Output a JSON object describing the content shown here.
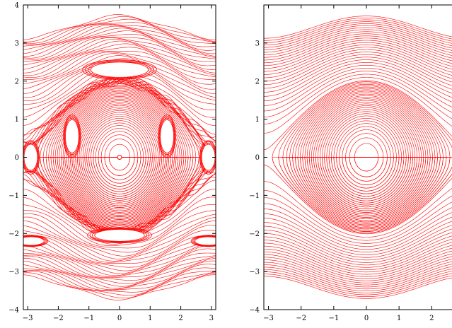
{
  "figure": {
    "background": "#ffffff",
    "curve_color": "#ff0000"
  },
  "chart_data": [
    {
      "type": "line",
      "panel": "left",
      "title": "",
      "xlabel": "",
      "ylabel": "",
      "xlim": [
        -3.14159,
        3.14159
      ],
      "ylim": [
        -4,
        4
      ],
      "x_ticks": [
        "−3",
        "−2",
        "−1",
        "0",
        "1",
        "2",
        "3"
      ],
      "x_tick_values": [
        -3,
        -2,
        -1,
        0,
        1,
        2,
        3
      ],
      "y_ticks": [
        "−4",
        "−3",
        "−2",
        "−1",
        "0",
        "1",
        "2",
        "3",
        "4"
      ],
      "y_tick_values": [
        -4,
        -3,
        -2,
        -1,
        0,
        1,
        2,
        3,
        4
      ],
      "grid": false,
      "legend": "none",
      "description_of_marks": "perturbed phase portrait (Poincaré section) with chaotic layers and island chains",
      "series": [
        {
          "kind": "separatrix-band",
          "amplitude": 0.65,
          "center": 3.0
        },
        {
          "kind": "island",
          "x": 0,
          "y": 2.3,
          "width": 1.5,
          "height": 0.32
        },
        {
          "kind": "island",
          "x": 0,
          "y": -2.05,
          "width": 1.3,
          "height": 0.25
        },
        {
          "kind": "island",
          "x": -2.9,
          "y": 0.0,
          "width": 0.35,
          "height": 0.55
        },
        {
          "kind": "island",
          "x": 2.9,
          "y": 0.0,
          "width": 0.35,
          "height": 0.55
        },
        {
          "kind": "island",
          "x": -2.9,
          "y": -2.2,
          "width": 0.7,
          "height": 0.18
        },
        {
          "kind": "island",
          "x": 2.9,
          "y": -2.2,
          "width": 0.7,
          "height": 0.18
        },
        {
          "kind": "island",
          "x": -1.55,
          "y": 0.55,
          "width": 0.35,
          "height": 0.7
        },
        {
          "kind": "island",
          "x": 1.55,
          "y": 0.55,
          "width": 0.35,
          "height": 0.7
        }
      ]
    },
    {
      "type": "line",
      "panel": "right",
      "title": "",
      "xlabel": "",
      "ylabel": "",
      "xlim": [
        -3.14159,
        3.14159
      ],
      "ylim": [
        -4,
        4
      ],
      "x_ticks": [
        "−3",
        "−2",
        "−1",
        "0",
        "1",
        "2"
      ],
      "x_tick_values": [
        -3,
        -2,
        -1,
        0,
        1,
        2
      ],
      "y_ticks": [
        "−4",
        "−3",
        "−2",
        "−1",
        "0",
        "1",
        "2",
        "3"
      ],
      "y_tick_values": [
        -4,
        -3,
        -2,
        -1,
        0,
        1,
        2,
        3
      ],
      "grid": false,
      "legend": "none",
      "description_of_marks": "unperturbed pendulum phase portrait: nested librations around origin and rotations above/below separatrix",
      "series": [
        {
          "kind": "separatrix-band",
          "amplitude": 0.6,
          "center": 3.0
        }
      ]
    }
  ]
}
